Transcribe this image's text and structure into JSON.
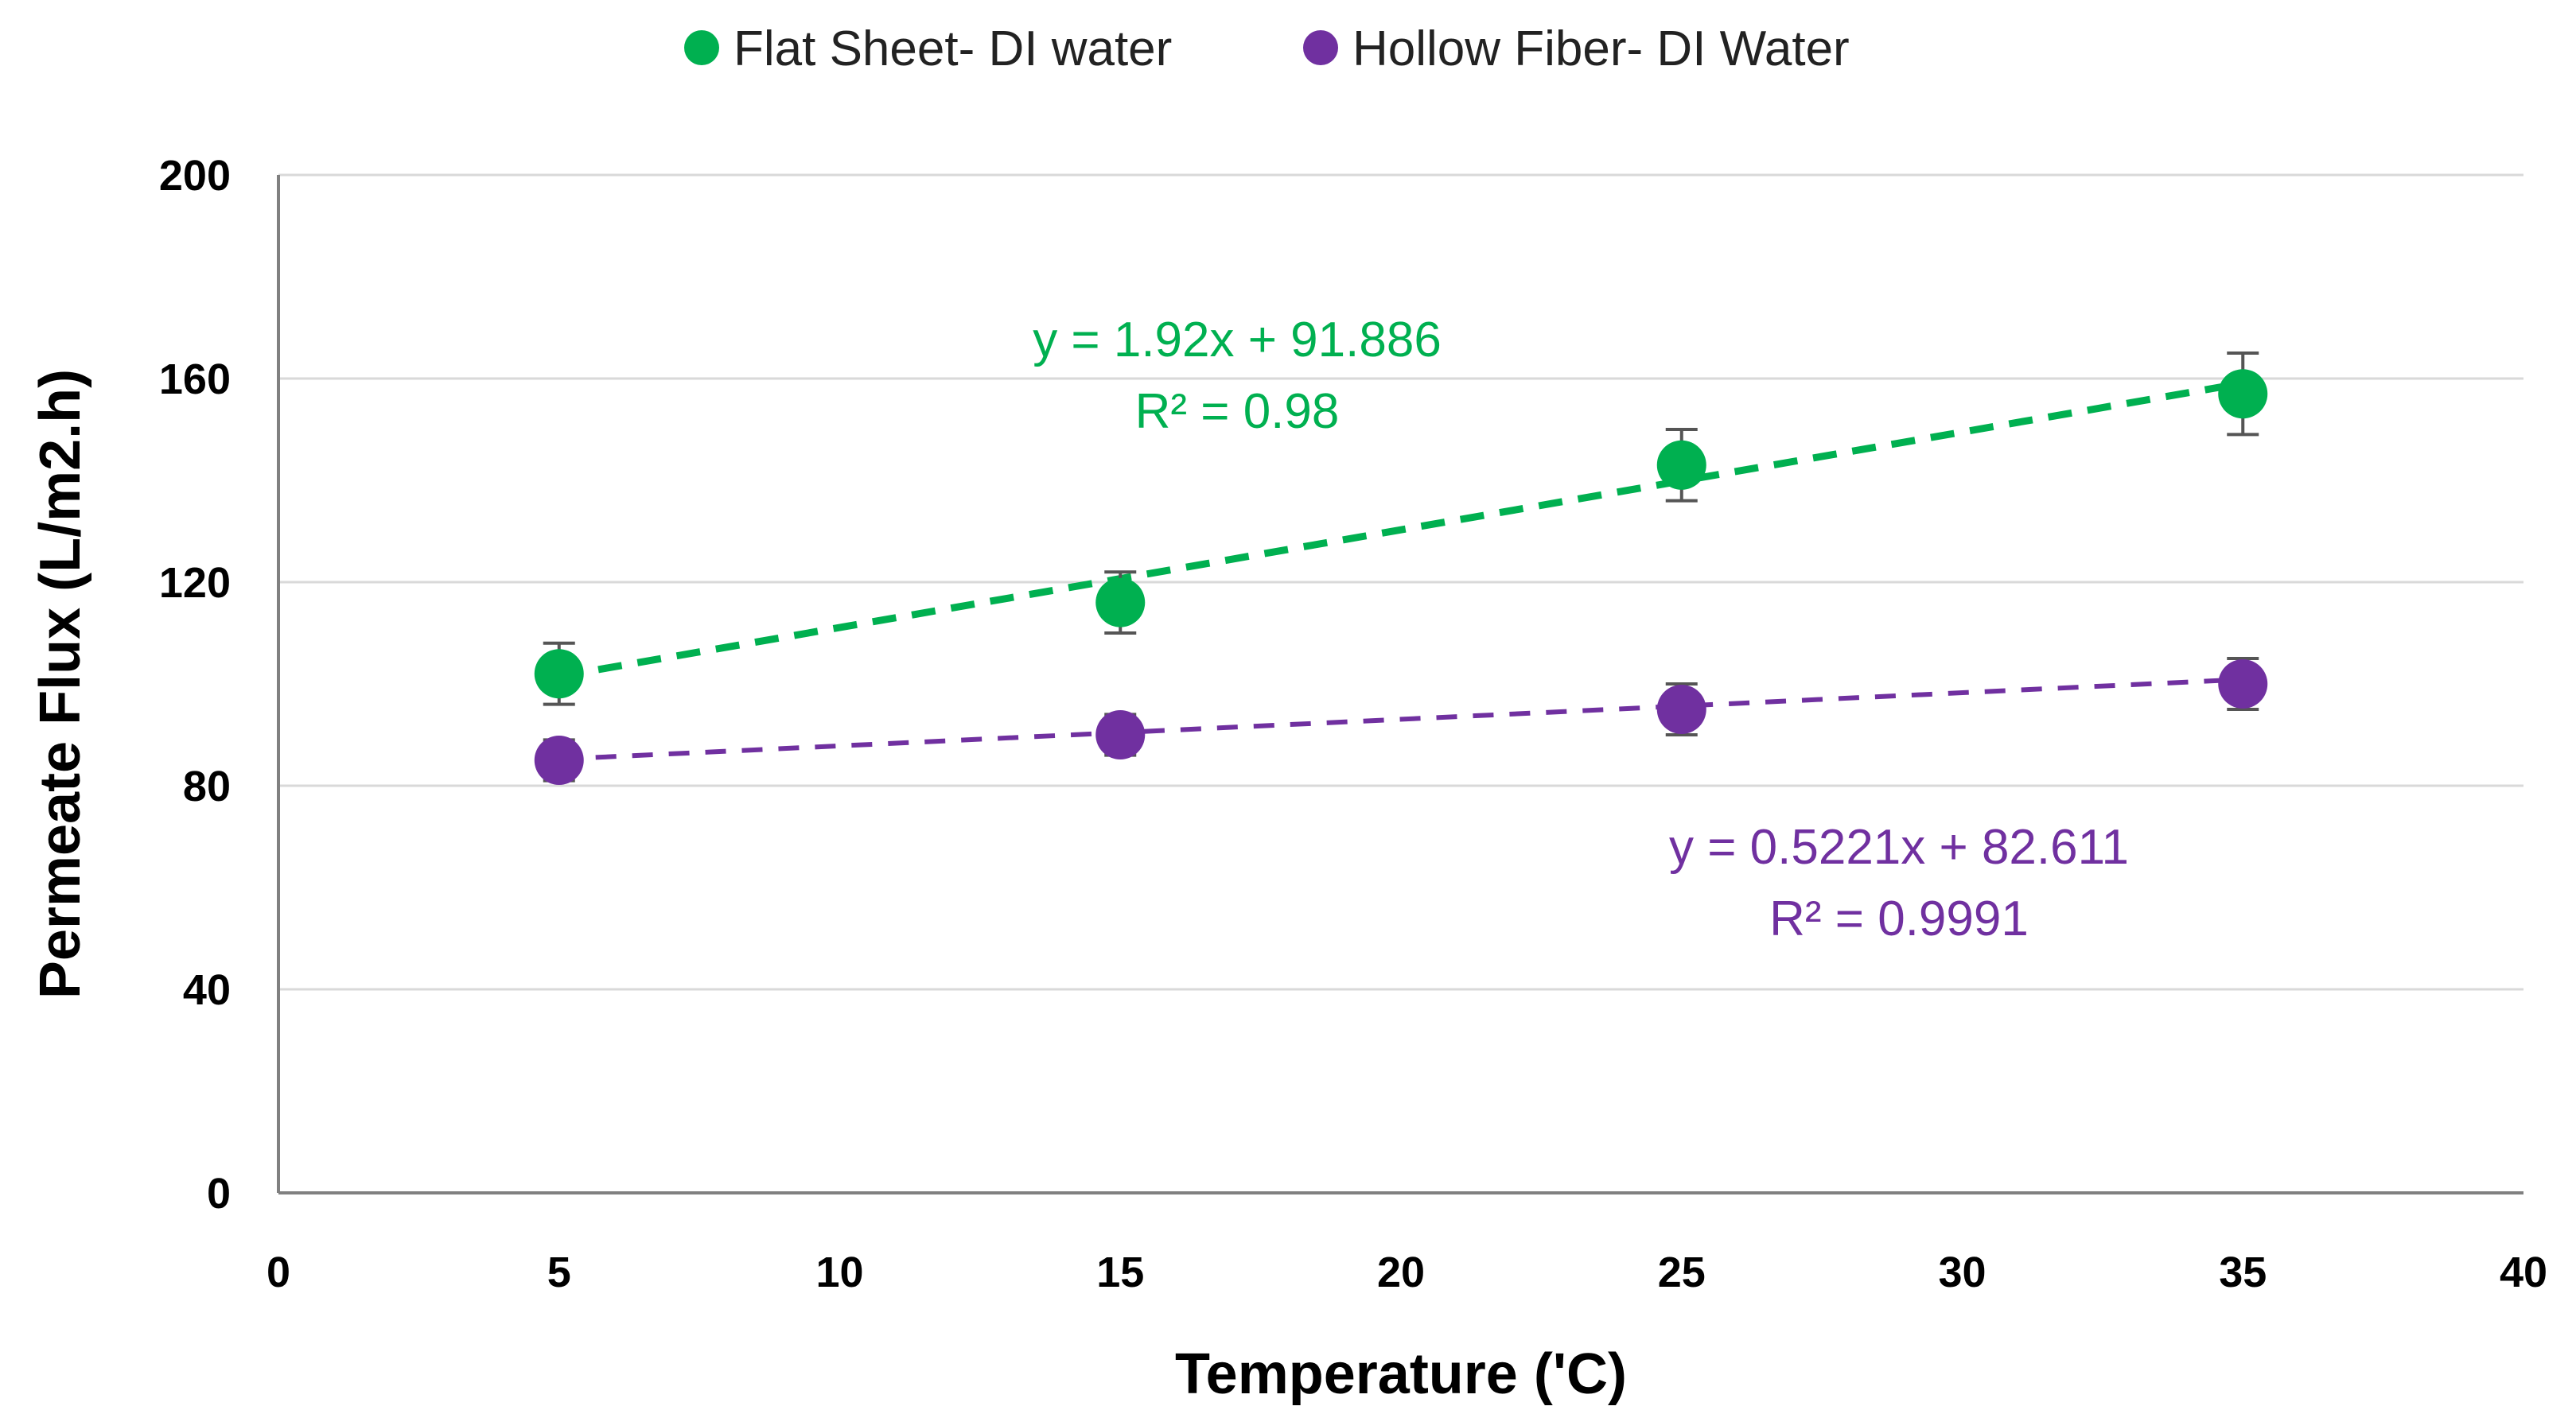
{
  "chart_data": {
    "type": "scatter",
    "title": "",
    "xlabel": "Temperature ('C)",
    "ylabel": "Permeate Flux (L/m2.h)",
    "xlim": [
      0,
      40
    ],
    "ylim": [
      0,
      200
    ],
    "xticks": [
      0,
      5,
      10,
      15,
      20,
      25,
      30,
      35,
      40
    ],
    "yticks": [
      0,
      40,
      80,
      120,
      160,
      200
    ],
    "xtick_labels": [
      "0",
      "5",
      "10",
      "15",
      "20",
      "25",
      "30",
      "35",
      "40"
    ],
    "ytick_labels": [
      "0",
      "40",
      "80",
      "120",
      "160",
      "200"
    ],
    "grid": "horizontal",
    "legend_position": "top",
    "series": [
      {
        "name": "Flat Sheet- DI water",
        "color": "#00b050",
        "x": [
          5,
          15,
          25,
          35
        ],
        "y": [
          102,
          116,
          143,
          157
        ],
        "error": [
          6,
          6,
          7,
          8
        ],
        "trendline": {
          "slope": 1.92,
          "intercept": 91.886,
          "x_range": [
            5,
            35
          ]
        },
        "equation": "y = 1.92x + 91.886",
        "r2": "R² = 0.98"
      },
      {
        "name": "Hollow Fiber- DI Water",
        "color": "#7030a0",
        "x": [
          5,
          15,
          25,
          35
        ],
        "y": [
          85,
          90,
          95,
          100
        ],
        "error": [
          4,
          4,
          5,
          5
        ],
        "trendline": {
          "slope": 0.5221,
          "intercept": 82.611,
          "x_range": [
            5,
            35
          ]
        },
        "equation": "y = 0.5221x + 82.611",
        "r2": "R² = 0.9991"
      }
    ]
  }
}
